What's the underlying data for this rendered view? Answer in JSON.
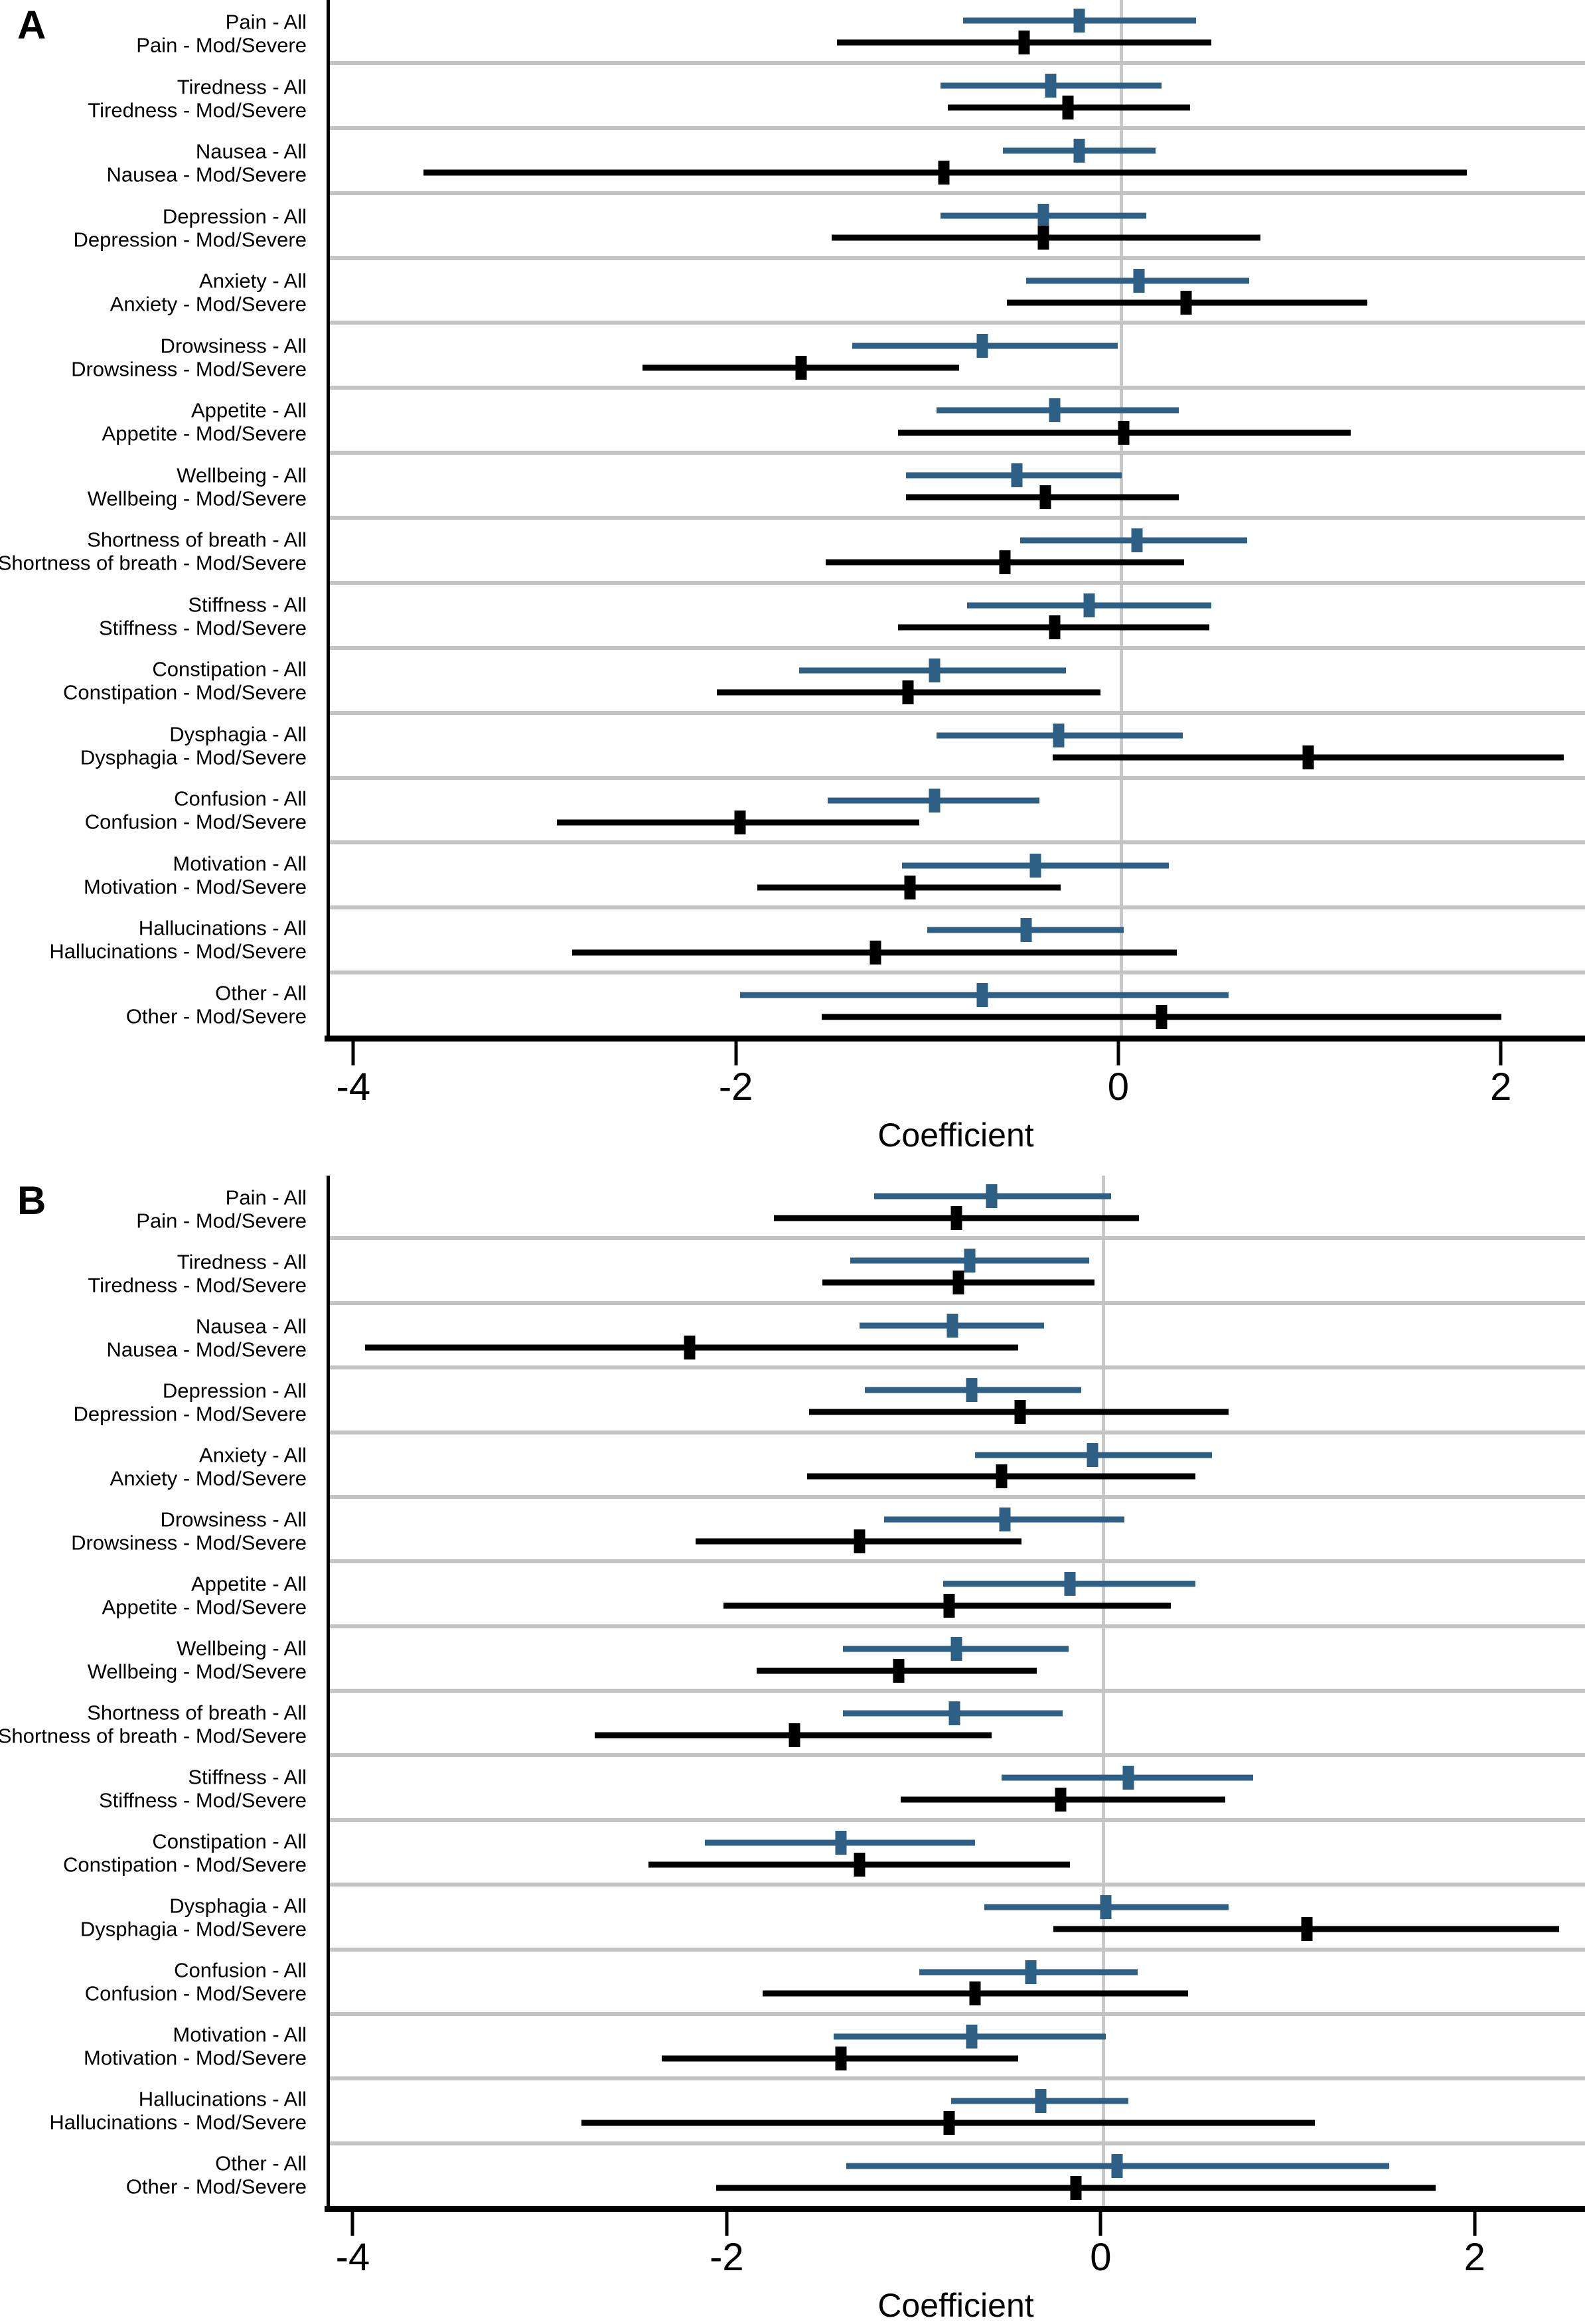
{
  "figure": {
    "panel_a_letter": "A",
    "panel_b_letter": "B",
    "colors": {
      "series_all": "#2e5f85",
      "series_mod_severe": "#000000",
      "zero_gridline": "#c9c9c9",
      "group_separator": "#c3c3c3",
      "axis": "#000000"
    }
  },
  "chart_data": [
    {
      "type": "scatter",
      "variant": "forest-plot",
      "panel_label": "A",
      "xlabel": "Coefficient",
      "xlim": [
        -4.14,
        2.44
      ],
      "xticks": [
        -4,
        -2,
        0,
        2
      ],
      "xtick_labels": [
        "-4",
        "-2",
        "0",
        "2"
      ],
      "grid": "horizontal-between-groups-and-zero-line",
      "legend_position": "none",
      "series": [
        {
          "name": "All",
          "color": "#2e5f85",
          "marker": "square"
        },
        {
          "name": "Mod/Severe",
          "color": "#000000",
          "marker": "square"
        }
      ],
      "groups": [
        {
          "name": "Pain",
          "rows": [
            {
              "label": "Pain - All",
              "series": "All",
              "ci_low": -0.82,
              "estimate": -0.21,
              "ci_high": 0.4
            },
            {
              "label": "Pain - Mod/Severe",
              "series": "Mod/Severe",
              "ci_low": -1.48,
              "estimate": -0.5,
              "ci_high": 0.48
            }
          ]
        },
        {
          "name": "Tiredness",
          "rows": [
            {
              "label": "Tiredness - All",
              "series": "All",
              "ci_low": -0.94,
              "estimate": -0.36,
              "ci_high": 0.22
            },
            {
              "label": "Tiredness - Mod/Severe",
              "series": "Mod/Severe",
              "ci_low": -0.9,
              "estimate": -0.27,
              "ci_high": 0.37
            }
          ]
        },
        {
          "name": "Nausea",
          "rows": [
            {
              "label": "Nausea - All",
              "series": "All",
              "ci_low": -0.61,
              "estimate": -0.21,
              "ci_high": 0.19
            },
            {
              "label": "Nausea - Mod/Severe",
              "series": "Mod/Severe",
              "ci_low": -3.65,
              "estimate": -0.92,
              "ci_high": 1.82
            }
          ]
        },
        {
          "name": "Depression",
          "rows": [
            {
              "label": "Depression - All",
              "series": "All",
              "ci_low": -0.94,
              "estimate": -0.4,
              "ci_high": 0.14
            },
            {
              "label": "Depression - Mod/Severe",
              "series": "Mod/Severe",
              "ci_low": -1.51,
              "estimate": -0.4,
              "ci_high": 0.74
            }
          ]
        },
        {
          "name": "Anxiety",
          "rows": [
            {
              "label": "Anxiety - All",
              "series": "All",
              "ci_low": -0.49,
              "estimate": 0.1,
              "ci_high": 0.68
            },
            {
              "label": "Anxiety - Mod/Severe",
              "series": "Mod/Severe",
              "ci_low": -0.59,
              "estimate": 0.35,
              "ci_high": 1.3
            }
          ]
        },
        {
          "name": "Drowsiness",
          "rows": [
            {
              "label": "Drowsiness - All",
              "series": "All",
              "ci_low": -1.4,
              "estimate": -0.72,
              "ci_high": -0.01
            },
            {
              "label": "Drowsiness - Mod/Severe",
              "series": "Mod/Severe",
              "ci_low": -2.5,
              "estimate": -1.67,
              "ci_high": -0.84
            }
          ]
        },
        {
          "name": "Appetite",
          "rows": [
            {
              "label": "Appetite - All",
              "series": "All",
              "ci_low": -0.96,
              "estimate": -0.34,
              "ci_high": 0.31
            },
            {
              "label": "Appetite - Mod/Severe",
              "series": "Mod/Severe",
              "ci_low": -1.16,
              "estimate": 0.02,
              "ci_high": 1.21
            }
          ]
        },
        {
          "name": "Wellbeing",
          "rows": [
            {
              "label": "Wellbeing - All",
              "series": "All",
              "ci_low": -1.12,
              "estimate": -0.54,
              "ci_high": 0.01
            },
            {
              "label": "Wellbeing - Mod/Severe",
              "series": "Mod/Severe",
              "ci_low": -1.12,
              "estimate": -0.39,
              "ci_high": 0.31
            }
          ]
        },
        {
          "name": "Shortness of breath",
          "rows": [
            {
              "label": "Shortness of breath - All",
              "series": "All",
              "ci_low": -0.52,
              "estimate": 0.09,
              "ci_high": 0.67
            },
            {
              "label": "Shortness of breath - Mod/Severe",
              "series": "Mod/Severe",
              "ci_low": -1.54,
              "estimate": -0.6,
              "ci_high": 0.34
            }
          ]
        },
        {
          "name": "Stiffness",
          "rows": [
            {
              "label": "Stiffness - All",
              "series": "All",
              "ci_low": -0.8,
              "estimate": -0.16,
              "ci_high": 0.48
            },
            {
              "label": "Stiffness - Mod/Severe",
              "series": "Mod/Severe",
              "ci_low": -1.16,
              "estimate": -0.34,
              "ci_high": 0.47
            }
          ]
        },
        {
          "name": "Constipation",
          "rows": [
            {
              "label": "Constipation - All",
              "series": "All",
              "ci_low": -1.68,
              "estimate": -0.97,
              "ci_high": -0.28
            },
            {
              "label": "Constipation - Mod/Severe",
              "series": "Mod/Severe",
              "ci_low": -2.11,
              "estimate": -1.11,
              "ci_high": -0.1
            }
          ]
        },
        {
          "name": "Dysphagia",
          "rows": [
            {
              "label": "Dysphagia - All",
              "series": "All",
              "ci_low": -0.96,
              "estimate": -0.32,
              "ci_high": 0.33
            },
            {
              "label": "Dysphagia - Mod/Severe",
              "series": "Mod/Severe",
              "ci_low": -0.35,
              "estimate": 0.99,
              "ci_high": 2.33
            }
          ]
        },
        {
          "name": "Confusion",
          "rows": [
            {
              "label": "Confusion - All",
              "series": "All",
              "ci_low": -1.53,
              "estimate": -0.97,
              "ci_high": -0.42
            },
            {
              "label": "Confusion - Mod/Severe",
              "series": "Mod/Severe",
              "ci_low": -2.95,
              "estimate": -1.99,
              "ci_high": -1.05
            }
          ]
        },
        {
          "name": "Motivation",
          "rows": [
            {
              "label": "Motivation - All",
              "series": "All",
              "ci_low": -1.14,
              "estimate": -0.44,
              "ci_high": 0.26
            },
            {
              "label": "Motivation - Mod/Severe",
              "series": "Mod/Severe",
              "ci_low": -1.9,
              "estimate": -1.1,
              "ci_high": -0.31
            }
          ]
        },
        {
          "name": "Hallucinations",
          "rows": [
            {
              "label": "Hallucinations - All",
              "series": "All",
              "ci_low": -1.01,
              "estimate": -0.49,
              "ci_high": 0.02
            },
            {
              "label": "Hallucinations - Mod/Severe",
              "series": "Mod/Severe",
              "ci_low": -2.87,
              "estimate": -1.28,
              "ci_high": 0.3
            }
          ]
        },
        {
          "name": "Other",
          "rows": [
            {
              "label": "Other - All",
              "series": "All",
              "ci_low": -1.99,
              "estimate": -0.72,
              "ci_high": 0.57
            },
            {
              "label": "Other - Mod/Severe",
              "series": "Mod/Severe",
              "ci_low": -1.56,
              "estimate": 0.22,
              "ci_high": 2.0
            }
          ]
        }
      ]
    },
    {
      "type": "scatter",
      "variant": "forest-plot",
      "panel_label": "B",
      "xlabel": "Coefficient",
      "xlim": [
        -4.14,
        2.59
      ],
      "xticks": [
        -4,
        -2,
        0,
        2
      ],
      "xtick_labels": [
        "-4",
        "-2",
        "0",
        "2"
      ],
      "grid": "horizontal-between-groups-and-zero-line",
      "legend_position": "none",
      "series": [
        {
          "name": "All",
          "color": "#2e5f85",
          "marker": "square"
        },
        {
          "name": "Mod/Severe",
          "color": "#000000",
          "marker": "square"
        }
      ],
      "groups": [
        {
          "name": "Pain",
          "rows": [
            {
              "label": "Pain - All",
              "series": "All",
              "ci_low": -1.22,
              "estimate": -0.59,
              "ci_high": 0.05
            },
            {
              "label": "Pain - Mod/Severe",
              "series": "Mod/Severe",
              "ci_low": -1.76,
              "estimate": -0.78,
              "ci_high": 0.2
            }
          ]
        },
        {
          "name": "Tiredness",
          "rows": [
            {
              "label": "Tiredness - All",
              "series": "All",
              "ci_low": -1.35,
              "estimate": -0.71,
              "ci_high": -0.07
            },
            {
              "label": "Tiredness - Mod/Severe",
              "series": "Mod/Severe",
              "ci_low": -1.5,
              "estimate": -0.77,
              "ci_high": -0.04
            }
          ]
        },
        {
          "name": "Nausea",
          "rows": [
            {
              "label": "Nausea - All",
              "series": "All",
              "ci_low": -1.3,
              "estimate": -0.8,
              "ci_high": -0.31
            },
            {
              "label": "Nausea - Mod/Severe",
              "series": "Mod/Severe",
              "ci_low": -3.95,
              "estimate": -2.21,
              "ci_high": -0.45
            }
          ]
        },
        {
          "name": "Depression",
          "rows": [
            {
              "label": "Depression - All",
              "series": "All",
              "ci_low": -1.27,
              "estimate": -0.7,
              "ci_high": -0.11
            },
            {
              "label": "Depression - Mod/Severe",
              "series": "Mod/Severe",
              "ci_low": -1.57,
              "estimate": -0.44,
              "ci_high": 0.68
            }
          ]
        },
        {
          "name": "Anxiety",
          "rows": [
            {
              "label": "Anxiety - All",
              "series": "All",
              "ci_low": -0.68,
              "estimate": -0.05,
              "ci_high": 0.59
            },
            {
              "label": "Anxiety - Mod/Severe",
              "series": "Mod/Severe",
              "ci_low": -1.58,
              "estimate": -0.54,
              "ci_high": 0.5
            }
          ]
        },
        {
          "name": "Drowsiness",
          "rows": [
            {
              "label": "Drowsiness - All",
              "series": "All",
              "ci_low": -1.17,
              "estimate": -0.52,
              "ci_high": 0.12
            },
            {
              "label": "Drowsiness - Mod/Severe",
              "series": "Mod/Severe",
              "ci_low": -2.18,
              "estimate": -1.3,
              "ci_high": -0.43
            }
          ]
        },
        {
          "name": "Appetite",
          "rows": [
            {
              "label": "Appetite - All",
              "series": "All",
              "ci_low": -0.85,
              "estimate": -0.17,
              "ci_high": 0.5
            },
            {
              "label": "Appetite - Mod/Severe",
              "series": "Mod/Severe",
              "ci_low": -2.03,
              "estimate": -0.82,
              "ci_high": 0.37
            }
          ]
        },
        {
          "name": "Wellbeing",
          "rows": [
            {
              "label": "Wellbeing - All",
              "series": "All",
              "ci_low": -1.39,
              "estimate": -0.78,
              "ci_high": -0.18
            },
            {
              "label": "Wellbeing - Mod/Severe",
              "series": "Mod/Severe",
              "ci_low": -1.85,
              "estimate": -1.09,
              "ci_high": -0.35
            }
          ]
        },
        {
          "name": "Shortness of breath",
          "rows": [
            {
              "label": "Shortness of breath - All",
              "series": "All",
              "ci_low": -1.39,
              "estimate": -0.79,
              "ci_high": -0.21
            },
            {
              "label": "Shortness of breath - Mod/Severe",
              "series": "Mod/Severe",
              "ci_low": -2.72,
              "estimate": -1.65,
              "ci_high": -0.59
            }
          ]
        },
        {
          "name": "Stiffness",
          "rows": [
            {
              "label": "Stiffness - All",
              "series": "All",
              "ci_low": -0.54,
              "estimate": 0.14,
              "ci_high": 0.81
            },
            {
              "label": "Stiffness - Mod/Severe",
              "series": "Mod/Severe",
              "ci_low": -1.08,
              "estimate": -0.22,
              "ci_high": 0.66
            }
          ]
        },
        {
          "name": "Constipation",
          "rows": [
            {
              "label": "Constipation - All",
              "series": "All",
              "ci_low": -2.13,
              "estimate": -1.4,
              "ci_high": -0.68
            },
            {
              "label": "Constipation - Mod/Severe",
              "series": "Mod/Severe",
              "ci_low": -2.43,
              "estimate": -1.3,
              "ci_high": -0.17
            }
          ]
        },
        {
          "name": "Dysphagia",
          "rows": [
            {
              "label": "Dysphagia - All",
              "series": "All",
              "ci_low": -0.63,
              "estimate": 0.02,
              "ci_high": 0.68
            },
            {
              "label": "Dysphagia - Mod/Severe",
              "series": "Mod/Severe",
              "ci_low": -0.26,
              "estimate": 1.1,
              "ci_high": 2.45
            }
          ]
        },
        {
          "name": "Confusion",
          "rows": [
            {
              "label": "Confusion - All",
              "series": "All",
              "ci_low": -0.98,
              "estimate": -0.38,
              "ci_high": 0.19
            },
            {
              "label": "Confusion - Mod/Severe",
              "series": "Mod/Severe",
              "ci_low": -1.82,
              "estimate": -0.68,
              "ci_high": 0.46
            }
          ]
        },
        {
          "name": "Motivation",
          "rows": [
            {
              "label": "Motivation - All",
              "series": "All",
              "ci_low": -1.44,
              "estimate": -0.7,
              "ci_high": 0.02
            },
            {
              "label": "Motivation - Mod/Severe",
              "series": "Mod/Severe",
              "ci_low": -2.36,
              "estimate": -1.4,
              "ci_high": -0.45
            }
          ]
        },
        {
          "name": "Hallucinations",
          "rows": [
            {
              "label": "Hallucinations - All",
              "series": "All",
              "ci_low": -0.81,
              "estimate": -0.33,
              "ci_high": 0.14
            },
            {
              "label": "Hallucinations - Mod/Severe",
              "series": "Mod/Severe",
              "ci_low": -2.79,
              "estimate": -0.82,
              "ci_high": 1.14
            }
          ]
        },
        {
          "name": "Other",
          "rows": [
            {
              "label": "Other - All",
              "series": "All",
              "ci_low": -1.37,
              "estimate": 0.08,
              "ci_high": 1.54
            },
            {
              "label": "Other - Mod/Severe",
              "series": "Mod/Severe",
              "ci_low": -2.07,
              "estimate": -0.14,
              "ci_high": 1.79
            }
          ]
        }
      ]
    }
  ]
}
